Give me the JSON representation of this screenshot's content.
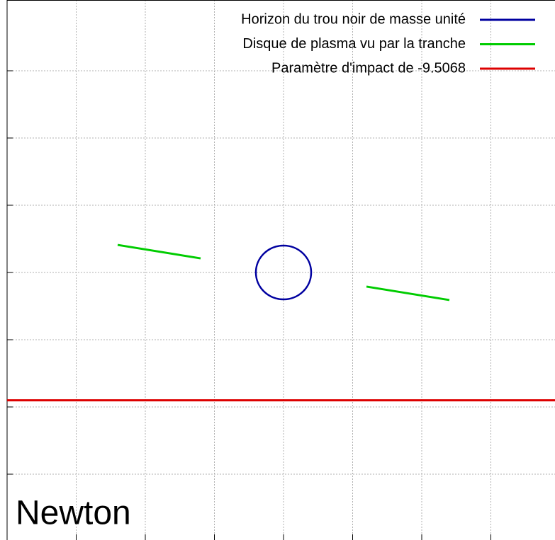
{
  "chart_data": {
    "type": "line",
    "annotation": "Newton",
    "xlim": [
      -20,
      20
    ],
    "ylim": [
      -20,
      20
    ],
    "xticks": [
      -15,
      -10,
      -5,
      0,
      5,
      10,
      15
    ],
    "yticks": [
      -15,
      -10,
      -5,
      0,
      5,
      10,
      15
    ],
    "grid": true,
    "legend": "top-right",
    "series": [
      {
        "name": "Horizon du trou noir de masse unité",
        "color": "#0000a0",
        "kind": "circle",
        "center": [
          0,
          0
        ],
        "radius": 2
      },
      {
        "name": "Disque de plasma vu par la tranche",
        "color": "#00cc00",
        "x": [
          -12,
          -6,
          null,
          6,
          12
        ],
        "y": [
          2.05,
          1.05,
          null,
          -1.05,
          -2.05
        ]
      },
      {
        "name": "Paramètre d'impact de -9.5068",
        "color": "#dd0000",
        "x": [
          -20,
          20
        ],
        "y": [
          -9.5068,
          -9.5068
        ]
      }
    ]
  }
}
